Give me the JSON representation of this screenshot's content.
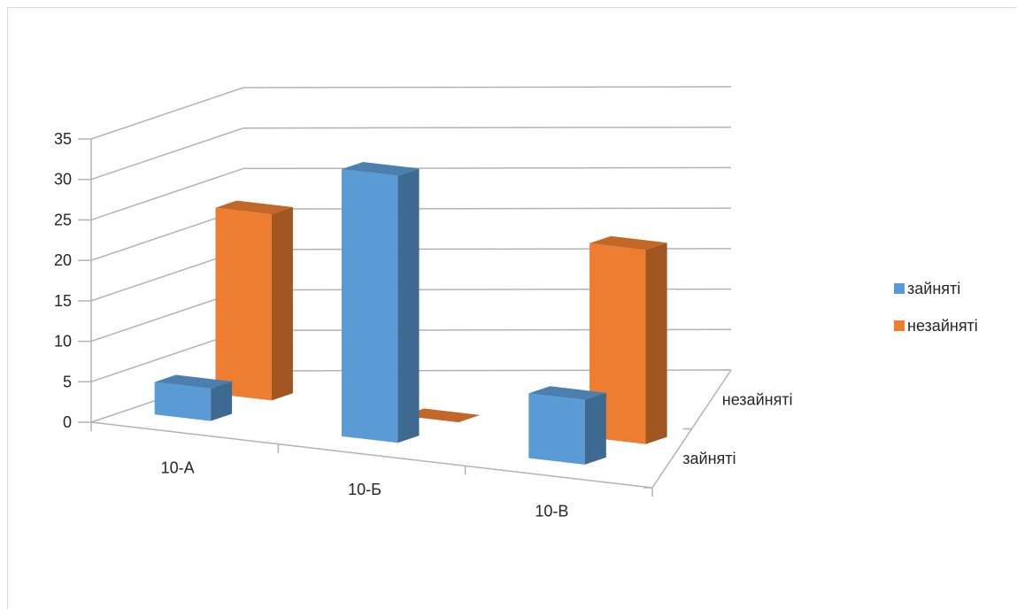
{
  "chart_data": {
    "type": "bar",
    "categories": [
      "10-А",
      "10-Б",
      "10-В"
    ],
    "series": [
      {
        "name": "зайняті",
        "values": [
          4,
          33,
          8
        ],
        "color": "#5B9BD5"
      },
      {
        "name": "незайняті",
        "values": [
          23,
          0,
          24
        ],
        "color": "#ED7D31"
      }
    ],
    "depth_labels": [
      "зайняті",
      "незайняті"
    ],
    "y_ticks": [
      "0",
      "5",
      "10",
      "15",
      "20",
      "25",
      "30",
      "35"
    ],
    "ylim": [
      0,
      35
    ],
    "grid": true,
    "legend_position": "right",
    "title": "",
    "xlabel": "",
    "ylabel": ""
  }
}
